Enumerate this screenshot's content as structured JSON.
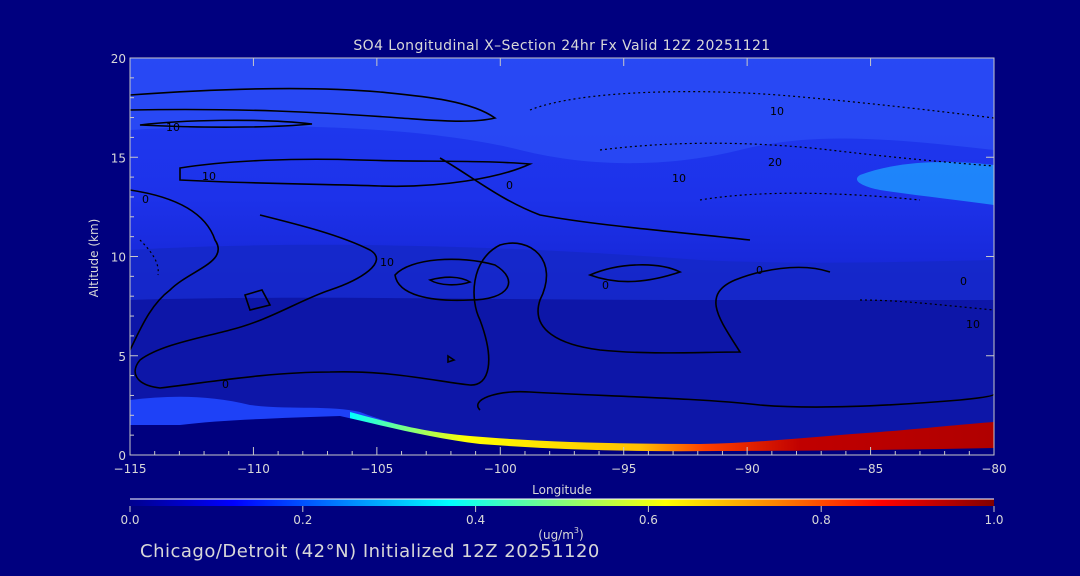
{
  "chart_data": {
    "type": "heatmap",
    "title": "SO4 Longitudinal X–Section 24hr  Fx Valid 12Z 20251121",
    "xlabel": "Longitude",
    "ylabel": "Altitude (km)",
    "xlim": [
      -115,
      -80
    ],
    "ylim": [
      0,
      20
    ],
    "x_ticks": [
      -115,
      -110,
      -105,
      -100,
      -95,
      -90,
      -85,
      -80
    ],
    "x_tick_labels": [
      "−115",
      "−110",
      "−105",
      "−100",
      "−95",
      "−90",
      "−85",
      "−80"
    ],
    "y_ticks": [
      0,
      5,
      10,
      15,
      20
    ],
    "y_tick_labels": [
      "0",
      "5",
      "10",
      "15",
      "20"
    ],
    "colorbar": {
      "min": 0.0,
      "max": 1.0,
      "ticks": [
        0.0,
        0.2,
        0.4,
        0.6,
        0.8,
        1.0
      ],
      "tick_labels": [
        "0.0",
        "0.2",
        "0.4",
        "0.6",
        "0.8",
        "1.0"
      ],
      "units_label": "(ug/m",
      "units_sup": "3",
      "units_tail": ")"
    },
    "surface_so4": {
      "x": [
        -106,
        -104,
        -102,
        -100,
        -98,
        -96,
        -94,
        -92,
        -90,
        -88,
        -86,
        -84,
        -82,
        -80
      ],
      "values": [
        0.25,
        0.45,
        0.5,
        0.58,
        0.62,
        0.62,
        0.62,
        0.62,
        0.7,
        0.85,
        0.92,
        0.95,
        0.95,
        0.95
      ]
    },
    "contour_labels": [
      "10",
      "10",
      "0",
      "0",
      "10",
      "10",
      "0",
      "0",
      "0",
      "10",
      "20",
      "0",
      "10"
    ]
  },
  "footer": {
    "text": "Chicago/Detroit (42°N) Initialized 12Z 20251120"
  },
  "colors": {
    "background": "#00007f",
    "colormap": [
      "#00008f",
      "#0000ff",
      "#00ffff",
      "#ffff00",
      "#ff7f00",
      "#ff0000",
      "#800000"
    ]
  }
}
